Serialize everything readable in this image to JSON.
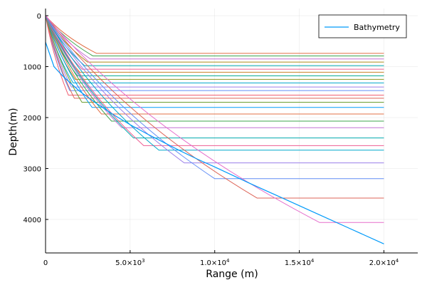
{
  "chart_data": {
    "type": "line",
    "xlabel": "Range (m)",
    "ylabel": "Depth(m)",
    "xlim": [
      0,
      22000
    ],
    "ylim": [
      0,
      4600
    ],
    "y_inverted": true,
    "grid": true,
    "legend_position": "top-right",
    "x_ticks": [
      {
        "value": 0,
        "label": "0"
      },
      {
        "value": 5000,
        "label": "5.0×10",
        "exp": "3"
      },
      {
        "value": 10000,
        "label": "1.0×10",
        "exp": "4"
      },
      {
        "value": 15000,
        "label": "1.5×10",
        "exp": "4"
      },
      {
        "value": 20000,
        "label": "2.0×10",
        "exp": "4"
      }
    ],
    "y_ticks": [
      {
        "value": 0,
        "label": "0"
      },
      {
        "value": 1000,
        "label": "1000"
      },
      {
        "value": 2000,
        "label": "2000"
      },
      {
        "value": 3000,
        "label": "3000"
      },
      {
        "value": 4000,
        "label": "4000"
      }
    ],
    "bathymetry": {
      "name": "Bathymetry",
      "color": "#009AFA",
      "x": [
        0,
        500,
        1000,
        2000,
        3000,
        4000,
        5000,
        6000,
        7000,
        8000,
        9000,
        10000,
        12000,
        14000,
        16000,
        18000,
        20000
      ],
      "y": [
        520,
        1000,
        1180,
        1480,
        1720,
        1940,
        2140,
        2320,
        2490,
        2660,
        2820,
        2970,
        3280,
        3580,
        3880,
        4180,
        4480
      ]
    },
    "rays": [
      {
        "color": "#E26F46",
        "turn_x": 3020,
        "turn_y": 740,
        "end_y": 740
      },
      {
        "color": "#3EA44E",
        "turn_x": 2800,
        "turn_y": 790,
        "end_y": 790
      },
      {
        "color": "#C271D2",
        "turn_x": 2650,
        "turn_y": 850,
        "end_y": 850
      },
      {
        "color": "#AC8E18",
        "turn_x": 2480,
        "turn_y": 910,
        "end_y": 910
      },
      {
        "color": "#00A9AD",
        "turn_x": 2300,
        "turn_y": 980,
        "end_y": 980
      },
      {
        "color": "#ED5D92",
        "turn_x": 2150,
        "turn_y": 1050,
        "end_y": 1050
      },
      {
        "color": "#C68225",
        "turn_x": 2020,
        "turn_y": 1110,
        "end_y": 1110
      },
      {
        "color": "#00A98D",
        "turn_x": 1880,
        "turn_y": 1180,
        "end_y": 1180
      },
      {
        "color": "#8E971E",
        "turn_x": 1750,
        "turn_y": 1250,
        "end_y": 1250
      },
      {
        "color": "#00A8CB",
        "turn_x": 1630,
        "turn_y": 1320,
        "end_y": 1320
      },
      {
        "color": "#9B7FE9",
        "turn_x": 1530,
        "turn_y": 1400,
        "end_y": 1400
      },
      {
        "color": "#618DF6",
        "turn_x": 1430,
        "turn_y": 1470,
        "end_y": 1470
      },
      {
        "color": "#F05F73",
        "turn_x": 1350,
        "turn_y": 1560,
        "end_y": 1560
      },
      {
        "color": "#DD6457",
        "turn_x": 1700,
        "turn_y": 1620,
        "end_y": 1620
      },
      {
        "color": "#6B9E32",
        "turn_x": 2150,
        "turn_y": 1700,
        "end_y": 1700
      },
      {
        "color": "#009AFA",
        "turn_x": 2750,
        "turn_y": 1800,
        "end_y": 1800
      },
      {
        "color": "#E26F46",
        "turn_x": 3300,
        "turn_y": 1930,
        "end_y": 1930
      },
      {
        "color": "#3EA44E",
        "turn_x": 3900,
        "turn_y": 2070,
        "end_y": 2070
      },
      {
        "color": "#C271D2",
        "turn_x": 4500,
        "turn_y": 2200,
        "end_y": 2200
      },
      {
        "color": "#00A9AD",
        "turn_x": 5200,
        "turn_y": 2400,
        "end_y": 2400
      },
      {
        "color": "#ED5D92",
        "turn_x": 5800,
        "turn_y": 2550,
        "end_y": 2550
      },
      {
        "color": "#00A8CB",
        "turn_x": 6700,
        "turn_y": 2640,
        "end_y": 2640
      },
      {
        "color": "#9B7FE9",
        "turn_x": 8200,
        "turn_y": 2890,
        "end_y": 2890
      },
      {
        "color": "#618DF6",
        "turn_x": 10000,
        "turn_y": 3200,
        "end_y": 3200
      },
      {
        "color": "#DD6457",
        "turn_x": 12500,
        "turn_y": 3580,
        "end_y": 3580
      },
      {
        "color": "#E56ECC",
        "turn_x": 16200,
        "turn_y": 4060,
        "end_y": 4060
      }
    ],
    "ray_end_x": 20000
  }
}
